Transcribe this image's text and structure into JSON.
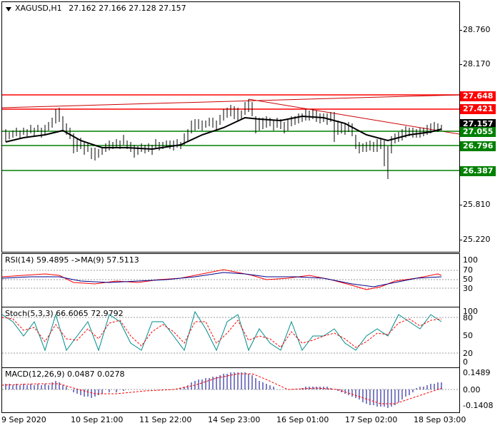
{
  "main_title": {
    "symbol": "XAGUSD,H1",
    "ohlc": "27.162 27.166 27.128 27.157"
  },
  "rsi_title": "RSI(14) 59.4895  ->MA(9) 57.5113",
  "stoch_title": "Stoch(5,3,3) 66.6065 72.9792",
  "macd_title": "MACD(12,26,9) 0.0487 0.0278",
  "price_axis": [
    "28.760",
    "28.170",
    "25.810",
    "25.220"
  ],
  "levels": {
    "r2": {
      "value": "27.648",
      "color": "#ff0000"
    },
    "r1": {
      "value": "27.421",
      "color": "#ff0000"
    },
    "current": {
      "value": "27.157",
      "color": "#000000"
    },
    "s1": {
      "value": "27.055",
      "color": "#008000"
    },
    "s2": {
      "value": "26.796",
      "color": "#008000"
    },
    "s3": {
      "value": "26.387",
      "color": "#008000"
    }
  },
  "rsi_axis": [
    "70",
    "50",
    "30"
  ],
  "rsi_axis_top": "100",
  "stoch_axis": [
    "100",
    "80",
    "50",
    "20",
    "0"
  ],
  "macd_axis": [
    "0.1489",
    "0.00",
    "-0.1408"
  ],
  "time_axis": [
    "9 Sep 2020",
    "10 Sep 21:00",
    "11 Sep 22:00",
    "14 Sep 23:00",
    "16 Sep 01:00",
    "17 Sep 02:00",
    "18 Sep 03:00"
  ],
  "colors": {
    "price_line": "#000000",
    "resistance": "#ff0000",
    "support": "#008000",
    "macd_hist": "#00008b",
    "signal": "#ff0000"
  }
}
